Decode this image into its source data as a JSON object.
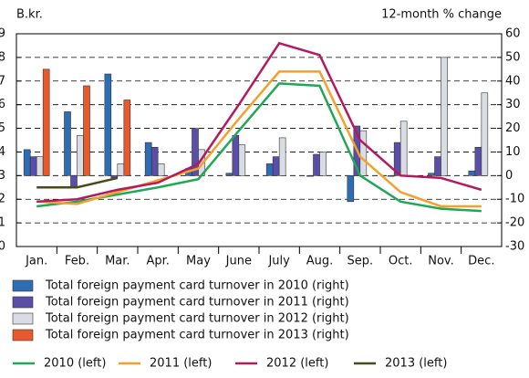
{
  "chart_data": {
    "type": "combo",
    "y_label": "B.kr.",
    "y2_label": "12-month % change",
    "categories": [
      "Jan.",
      "Feb.",
      "Mar.",
      "Apr.",
      "May",
      "June",
      "July",
      "Aug.",
      "Sep.",
      "Oct.",
      "Nov.",
      "Dec."
    ],
    "ylim": [
      0,
      9
    ],
    "yticks": [
      0,
      1,
      2,
      3,
      4,
      5,
      6,
      7,
      8,
      9
    ],
    "y2lim": [
      -30,
      60
    ],
    "y2ticks": [
      -30,
      -20,
      -10,
      0,
      10,
      20,
      30,
      40,
      50,
      60
    ],
    "grid": true,
    "series": [
      {
        "name": "Total foreign payment card turnover in 2010 (right)",
        "type": "bar",
        "axis": "y2",
        "color": "#2e6db4",
        "values": [
          11,
          27,
          43,
          14,
          3,
          1,
          5,
          0,
          -11,
          0,
          1,
          2
        ]
      },
      {
        "name": "Total foreign payment card turnover in 2011 (right)",
        "type": "bar",
        "axis": "y2",
        "color": "#5b4ea8",
        "values": [
          8,
          -5,
          -1,
          12,
          20,
          17,
          8,
          9,
          21,
          14,
          8,
          12
        ]
      },
      {
        "name": "Total foreign payment card turnover in 2012 (right)",
        "type": "bar",
        "axis": "y2",
        "color": "#d9dce2",
        "values": [
          8,
          17,
          5,
          5,
          11,
          13,
          16,
          10,
          19,
          23,
          50,
          35
        ]
      },
      {
        "name": "Total foreign payment card turnover in 2013 (right)",
        "type": "bar",
        "axis": "y2",
        "color": "#e8592b",
        "values": [
          45,
          38,
          32,
          null,
          null,
          null,
          null,
          null,
          null,
          null,
          null,
          null
        ]
      },
      {
        "name": "2010 (left)",
        "type": "line",
        "axis": "y",
        "color": "#1fa855",
        "values": [
          1.7,
          1.9,
          2.2,
          2.5,
          2.85,
          4.9,
          6.9,
          6.8,
          3.0,
          1.9,
          1.6,
          1.5
        ]
      },
      {
        "name": "2011 (left)",
        "type": "line",
        "axis": "y",
        "color": "#f5a02a",
        "values": [
          1.9,
          1.8,
          2.3,
          2.8,
          3.3,
          5.4,
          7.4,
          7.4,
          3.8,
          2.3,
          1.7,
          1.7
        ]
      },
      {
        "name": "2012 (left)",
        "type": "line",
        "axis": "y",
        "color": "#b5195e",
        "values": [
          1.9,
          2.0,
          2.4,
          2.7,
          3.5,
          6.0,
          8.6,
          8.1,
          4.5,
          3.0,
          2.9,
          2.4
        ]
      },
      {
        "name": "2013 (left)",
        "type": "line",
        "axis": "y",
        "color": "#4a4a1a",
        "values": [
          2.5,
          2.5,
          2.9,
          null,
          null,
          null,
          null,
          null,
          null,
          null,
          null,
          null
        ]
      }
    ]
  }
}
